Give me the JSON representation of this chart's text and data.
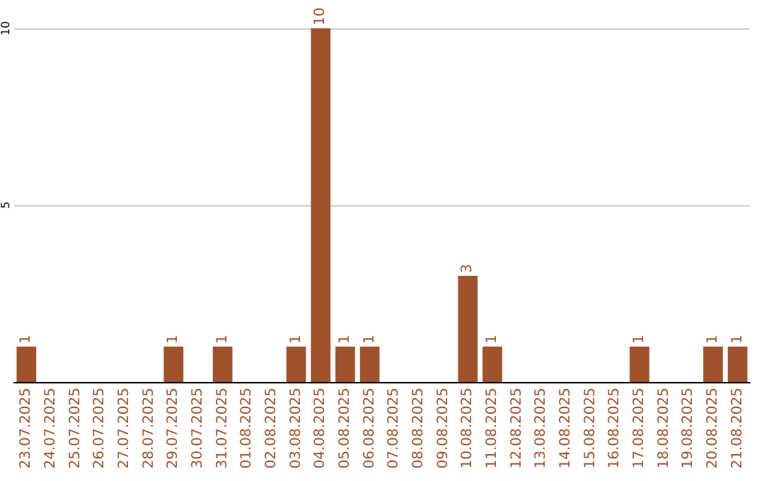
{
  "chart_data": {
    "type": "bar",
    "categories": [
      "23.07.2025",
      "24.07.2025",
      "25.07.2025",
      "26.07.2025",
      "27.07.2025",
      "28.07.2025",
      "29.07.2025",
      "30.07.2025",
      "31.07.2025",
      "01.08.2025",
      "02.08.2025",
      "03.08.2025",
      "04.08.2025",
      "05.08.2025",
      "06.08.2025",
      "07.08.2025",
      "08.08.2025",
      "09.08.2025",
      "10.08.2025",
      "11.08.2025",
      "12.08.2025",
      "13.08.2025",
      "14.08.2025",
      "15.08.2025",
      "16.08.2025",
      "17.08.2025",
      "18.08.2025",
      "19.08.2025",
      "20.08.2025",
      "21.08.2025"
    ],
    "values": [
      1,
      0,
      0,
      0,
      0,
      0,
      1,
      0,
      1,
      0,
      0,
      1,
      10,
      1,
      1,
      0,
      0,
      0,
      3,
      1,
      0,
      0,
      0,
      0,
      0,
      1,
      0,
      0,
      1,
      1
    ],
    "value_labels": [
      "1",
      null,
      null,
      null,
      null,
      null,
      "1",
      null,
      "1",
      null,
      null,
      "1",
      "10",
      "1",
      "1",
      null,
      null,
      null,
      "3",
      "1",
      null,
      null,
      null,
      null,
      null,
      "1",
      null,
      null,
      "1",
      "1"
    ],
    "color": "#a0522d",
    "ylim": [
      0,
      10
    ],
    "yticks": [
      {
        "value": 0,
        "label": null
      },
      5,
      10
    ],
    "grid": "y"
  }
}
